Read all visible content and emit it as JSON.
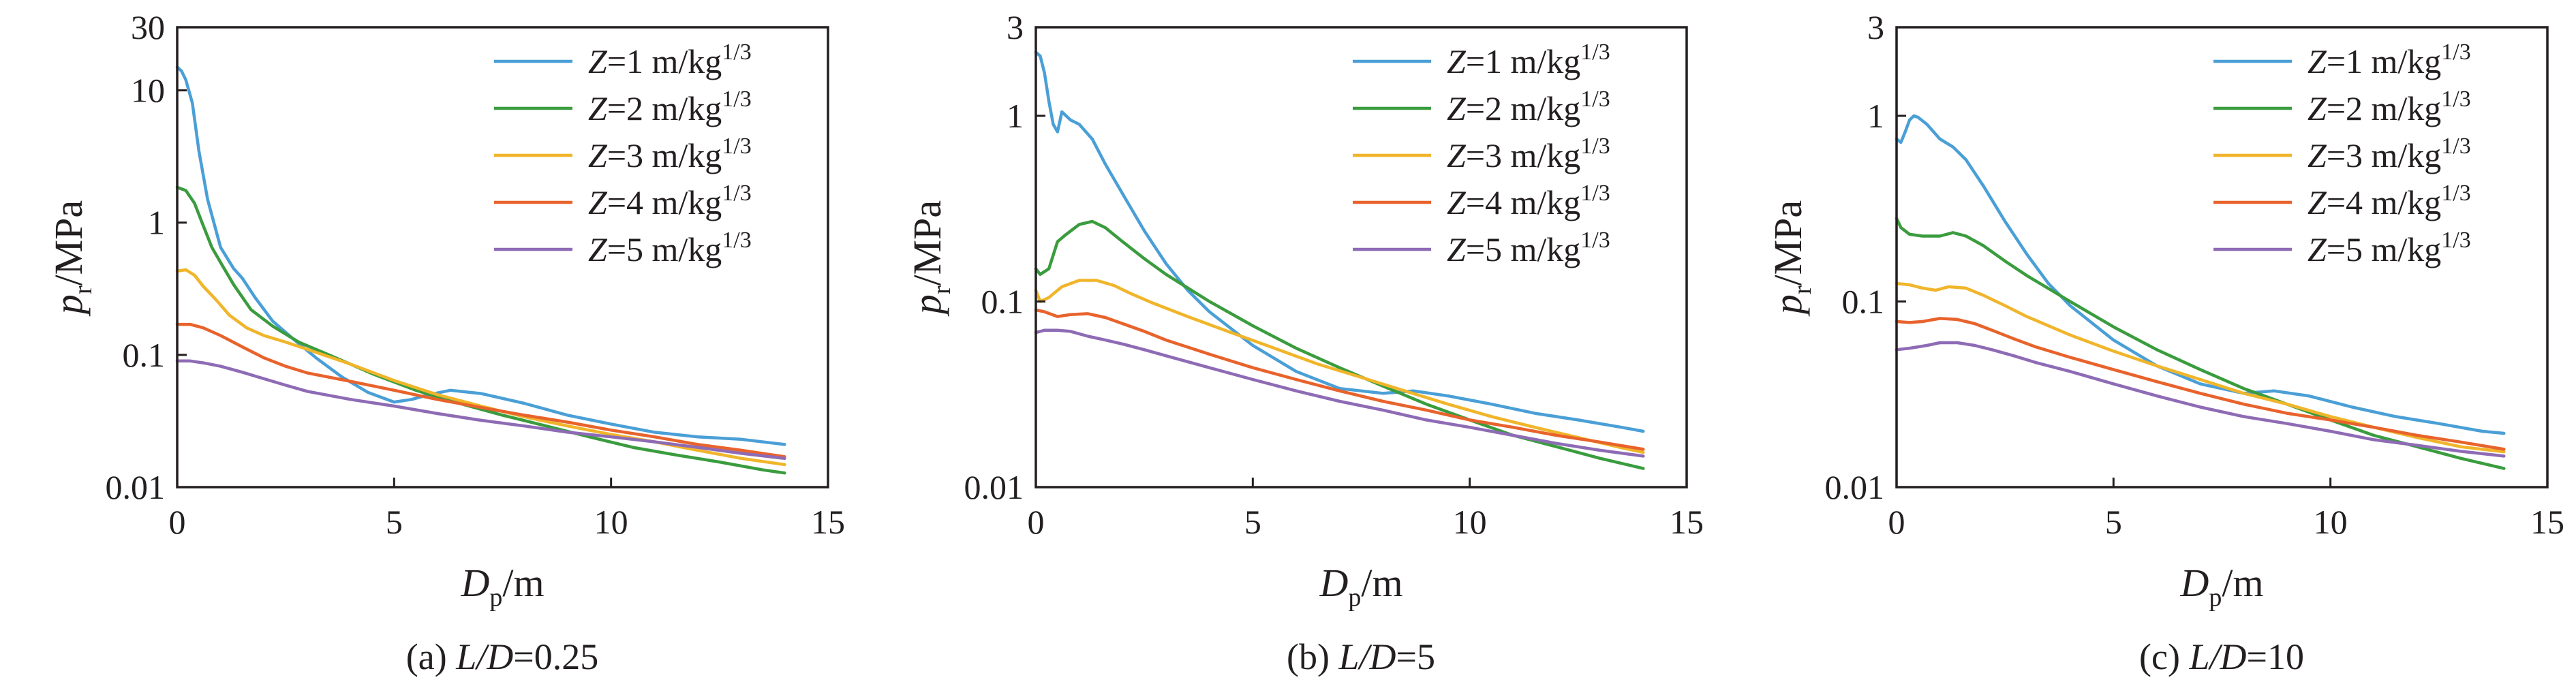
{
  "chart_data": [
    {
      "type": "line",
      "panel_label": "(a) ",
      "caption_var": "L/D",
      "caption_val": "=0.25",
      "xlabel_main": "D",
      "xlabel_sub": "p",
      "xlabel_unit": "/m",
      "ylabel_main": "p",
      "ylabel_sub": "r",
      "ylabel_unit": "/MPa",
      "xlim": [
        0,
        15
      ],
      "ylim": [
        0.01,
        30
      ],
      "y_scale": "log",
      "x_ticks": [
        "0",
        "5",
        "10",
        "15"
      ],
      "y_ticks": [
        "0.01",
        "0.1",
        "1",
        "10",
        "30"
      ],
      "legend_position": "top-right",
      "series": [
        {
          "name": "Z=1 m/kg1/3",
          "var": "Z",
          "rest": "=1 m/kg",
          "exp": "1/3",
          "color": "#4a9fd6",
          "x": [
            0,
            0.1,
            0.2,
            0.35,
            0.5,
            0.7,
            1.0,
            1.3,
            1.5,
            1.8,
            2.2,
            2.7,
            3.2,
            3.8,
            4.4,
            5.0,
            5.4,
            5.8,
            6.3,
            7.0,
            8.0,
            9.0,
            10.0,
            11.0,
            12.0,
            13.0,
            14.0
          ],
          "y": [
            15,
            14,
            12,
            8,
            3.5,
            1.5,
            0.65,
            0.45,
            0.38,
            0.27,
            0.18,
            0.13,
            0.095,
            0.068,
            0.052,
            0.044,
            0.046,
            0.05,
            0.054,
            0.051,
            0.043,
            0.035,
            0.03,
            0.026,
            0.024,
            0.023,
            0.021
          ]
        },
        {
          "name": "Z=2 m/kg1/3",
          "var": "Z",
          "rest": "=2 m/kg",
          "exp": "1/3",
          "color": "#3a9c3e",
          "x": [
            0,
            0.2,
            0.4,
            0.6,
            0.8,
            1.0,
            1.3,
            1.7,
            2.2,
            2.8,
            3.5,
            4.5,
            5.5,
            6.5,
            7.5,
            8.5,
            9.5,
            10.5,
            11.5,
            12.5,
            13.5,
            14.0
          ],
          "y": [
            1.85,
            1.75,
            1.4,
            0.95,
            0.65,
            0.5,
            0.34,
            0.22,
            0.165,
            0.125,
            0.1,
            0.072,
            0.054,
            0.043,
            0.035,
            0.029,
            0.024,
            0.02,
            0.0175,
            0.0155,
            0.0135,
            0.0128
          ]
        },
        {
          "name": "Z=3 m/kg1/3",
          "var": "Z",
          "rest": "=3 m/kg",
          "exp": "1/3",
          "color": "#f0b52a",
          "x": [
            0,
            0.2,
            0.4,
            0.6,
            0.9,
            1.2,
            1.6,
            2.0,
            2.5,
            3.0,
            4.0,
            5.0,
            6.0,
            7.0,
            8.0,
            9.0,
            10.0,
            11.0,
            12.0,
            13.0,
            14.0
          ],
          "y": [
            0.43,
            0.44,
            0.4,
            0.33,
            0.26,
            0.2,
            0.16,
            0.14,
            0.125,
            0.11,
            0.085,
            0.064,
            0.05,
            0.041,
            0.034,
            0.029,
            0.025,
            0.022,
            0.019,
            0.0165,
            0.0148
          ]
        },
        {
          "name": "Z=4 m/kg1/3",
          "var": "Z",
          "rest": "=4 m/kg",
          "exp": "1/3",
          "color": "#e8632c",
          "x": [
            0,
            0.3,
            0.6,
            1.0,
            1.5,
            2.0,
            2.5,
            3.0,
            4.0,
            5.0,
            6.0,
            7.0,
            8.0,
            9.0,
            10.0,
            11.0,
            12.0,
            13.0,
            14.0
          ],
          "y": [
            0.17,
            0.17,
            0.16,
            0.14,
            0.115,
            0.095,
            0.082,
            0.073,
            0.063,
            0.054,
            0.046,
            0.04,
            0.035,
            0.031,
            0.027,
            0.024,
            0.021,
            0.019,
            0.017
          ]
        },
        {
          "name": "Z=5 m/kg1/3",
          "var": "Z",
          "rest": "=5 m/kg",
          "exp": "1/3",
          "color": "#8e6bb5",
          "x": [
            0,
            0.3,
            0.6,
            1.0,
            1.5,
            2.0,
            2.5,
            3.0,
            4.0,
            5.0,
            6.0,
            7.0,
            8.0,
            9.0,
            10.0,
            11.0,
            12.0,
            13.0,
            14.0
          ],
          "y": [
            0.09,
            0.09,
            0.087,
            0.082,
            0.074,
            0.066,
            0.059,
            0.053,
            0.046,
            0.041,
            0.036,
            0.032,
            0.029,
            0.026,
            0.024,
            0.022,
            0.02,
            0.018,
            0.0165
          ]
        }
      ]
    },
    {
      "type": "line",
      "panel_label": "(b) ",
      "caption_var": "L/D",
      "caption_val": "=5",
      "xlabel_main": "D",
      "xlabel_sub": "p",
      "xlabel_unit": "/m",
      "ylabel_main": "p",
      "ylabel_sub": "r",
      "ylabel_unit": "/MPa",
      "xlim": [
        0,
        15
      ],
      "ylim": [
        0.01,
        3
      ],
      "y_scale": "log",
      "x_ticks": [
        "0",
        "5",
        "10",
        "15"
      ],
      "y_ticks": [
        "0.01",
        "0.1",
        "1",
        "3"
      ],
      "legend_position": "top-right",
      "series": [
        {
          "name": "Z=1 m/kg1/3",
          "var": "Z",
          "rest": "=1 m/kg",
          "exp": "1/3",
          "color": "#4a9fd6",
          "x": [
            0,
            0.1,
            0.2,
            0.3,
            0.4,
            0.5,
            0.6,
            0.8,
            1.0,
            1.3,
            1.6,
            2.0,
            2.5,
            3.0,
            3.5,
            4.0,
            5.0,
            6.0,
            7.0,
            8.0,
            8.7,
            9.5,
            10.5,
            11.5,
            12.5,
            13.5,
            14.0
          ],
          "y": [
            2.2,
            2.1,
            1.7,
            1.2,
            0.9,
            0.82,
            1.05,
            0.95,
            0.9,
            0.75,
            0.55,
            0.38,
            0.24,
            0.16,
            0.115,
            0.088,
            0.058,
            0.042,
            0.034,
            0.032,
            0.033,
            0.031,
            0.028,
            0.025,
            0.023,
            0.021,
            0.02
          ]
        },
        {
          "name": "Z=2 m/kg1/3",
          "var": "Z",
          "rest": "=2 m/kg",
          "exp": "1/3",
          "color": "#3a9c3e",
          "x": [
            0,
            0.1,
            0.3,
            0.5,
            0.7,
            1.0,
            1.3,
            1.6,
            2.0,
            2.5,
            3.0,
            4.0,
            5.0,
            6.0,
            7.0,
            8.0,
            9.0,
            10.0,
            11.0,
            12.0,
            13.0,
            14.0
          ],
          "y": [
            0.15,
            0.14,
            0.15,
            0.21,
            0.23,
            0.26,
            0.27,
            0.25,
            0.21,
            0.17,
            0.14,
            0.1,
            0.074,
            0.056,
            0.044,
            0.035,
            0.028,
            0.023,
            0.019,
            0.0165,
            0.0143,
            0.0126
          ]
        },
        {
          "name": "Z=3 m/kg1/3",
          "var": "Z",
          "rest": "=3 m/kg",
          "exp": "1/3",
          "color": "#f0b52a",
          "x": [
            0,
            0.1,
            0.3,
            0.6,
            1.0,
            1.4,
            1.8,
            2.2,
            2.7,
            3.5,
            4.5,
            5.5,
            6.5,
            7.5,
            8.5,
            9.5,
            10.5,
            11.5,
            12.5,
            13.5,
            14.0
          ],
          "y": [
            0.115,
            0.1,
            0.105,
            0.12,
            0.13,
            0.13,
            0.122,
            0.11,
            0.098,
            0.083,
            0.068,
            0.056,
            0.046,
            0.039,
            0.033,
            0.028,
            0.024,
            0.021,
            0.0185,
            0.0163,
            0.0154
          ]
        },
        {
          "name": "Z=4 m/kg1/3",
          "var": "Z",
          "rest": "=4 m/kg",
          "exp": "1/3",
          "color": "#e8632c",
          "x": [
            0,
            0.2,
            0.5,
            0.8,
            1.2,
            1.6,
            2.0,
            2.5,
            3.0,
            4.0,
            5.0,
            6.0,
            7.0,
            8.0,
            9.0,
            10.0,
            11.0,
            12.0,
            13.0,
            14.0
          ],
          "y": [
            0.09,
            0.088,
            0.083,
            0.085,
            0.086,
            0.082,
            0.076,
            0.069,
            0.062,
            0.052,
            0.044,
            0.038,
            0.033,
            0.029,
            0.026,
            0.023,
            0.021,
            0.019,
            0.0175,
            0.016
          ]
        },
        {
          "name": "Z=5 m/kg1/3",
          "var": "Z",
          "rest": "=5 m/kg",
          "exp": "1/3",
          "color": "#8e6bb5",
          "x": [
            0,
            0.2,
            0.5,
            0.8,
            1.2,
            1.6,
            2.0,
            2.5,
            3.0,
            4.0,
            5.0,
            6.0,
            7.0,
            8.0,
            9.0,
            10.0,
            11.0,
            12.0,
            13.0,
            14.0
          ],
          "y": [
            0.068,
            0.07,
            0.07,
            0.069,
            0.065,
            0.062,
            0.059,
            0.055,
            0.051,
            0.044,
            0.038,
            0.033,
            0.029,
            0.026,
            0.023,
            0.021,
            0.019,
            0.0172,
            0.0158,
            0.0147
          ]
        }
      ]
    },
    {
      "type": "line",
      "panel_label": "(c) ",
      "caption_var": "L/D",
      "caption_val": "=10",
      "xlabel_main": "D",
      "xlabel_sub": "p",
      "xlabel_unit": "/m",
      "ylabel_main": "p",
      "ylabel_sub": "r",
      "ylabel_unit": "/MPa",
      "xlim": [
        0,
        15
      ],
      "ylim": [
        0.01,
        3
      ],
      "y_scale": "log",
      "x_ticks": [
        "0",
        "5",
        "10",
        "15"
      ],
      "y_ticks": [
        "0.01",
        "0.1",
        "1",
        "3"
      ],
      "legend_position": "top-right",
      "series": [
        {
          "name": "Z=1 m/kg1/3",
          "var": "Z",
          "rest": "=1 m/kg",
          "exp": "1/3",
          "color": "#4a9fd6",
          "x": [
            0,
            0.1,
            0.2,
            0.3,
            0.4,
            0.5,
            0.7,
            1.0,
            1.3,
            1.6,
            2.0,
            2.5,
            3.0,
            3.5,
            4.0,
            5.0,
            6.0,
            7.0,
            8.0,
            8.7,
            9.5,
            10.5,
            11.5,
            12.5,
            13.5,
            14.0
          ],
          "y": [
            0.75,
            0.72,
            0.82,
            0.95,
            1.0,
            0.98,
            0.9,
            0.75,
            0.68,
            0.58,
            0.42,
            0.27,
            0.18,
            0.125,
            0.095,
            0.062,
            0.045,
            0.036,
            0.032,
            0.033,
            0.031,
            0.027,
            0.024,
            0.022,
            0.02,
            0.0195
          ]
        },
        {
          "name": "Z=2 m/kg1/3",
          "var": "Z",
          "rest": "=2 m/kg",
          "exp": "1/3",
          "color": "#3a9c3e",
          "x": [
            0,
            0.1,
            0.3,
            0.6,
            1.0,
            1.3,
            1.6,
            2.0,
            2.5,
            3.0,
            4.0,
            5.0,
            6.0,
            7.0,
            8.0,
            9.0,
            10.0,
            11.0,
            12.0,
            13.0,
            14.0
          ],
          "y": [
            0.28,
            0.25,
            0.23,
            0.225,
            0.225,
            0.235,
            0.225,
            0.2,
            0.165,
            0.138,
            0.1,
            0.073,
            0.055,
            0.043,
            0.034,
            0.028,
            0.023,
            0.019,
            0.0165,
            0.0143,
            0.0126
          ]
        },
        {
          "name": "Z=3 m/kg1/3",
          "var": "Z",
          "rest": "=3 m/kg",
          "exp": "1/3",
          "color": "#f0b52a",
          "x": [
            0,
            0.3,
            0.6,
            0.9,
            1.2,
            1.6,
            2.0,
            2.5,
            3.0,
            4.0,
            5.0,
            6.0,
            7.0,
            8.0,
            9.0,
            10.0,
            11.0,
            12.0,
            13.0,
            14.0
          ],
          "y": [
            0.125,
            0.123,
            0.118,
            0.115,
            0.12,
            0.118,
            0.108,
            0.095,
            0.083,
            0.066,
            0.054,
            0.045,
            0.038,
            0.032,
            0.028,
            0.024,
            0.021,
            0.0185,
            0.0165,
            0.0155
          ]
        },
        {
          "name": "Z=4 m/kg1/3",
          "var": "Z",
          "rest": "=4 m/kg",
          "exp": "1/3",
          "color": "#e8632c",
          "x": [
            0,
            0.3,
            0.6,
            1.0,
            1.4,
            1.8,
            2.2,
            2.7,
            3.2,
            4.0,
            5.0,
            6.0,
            7.0,
            8.0,
            9.0,
            10.0,
            11.0,
            12.0,
            13.0,
            14.0
          ],
          "y": [
            0.078,
            0.077,
            0.078,
            0.081,
            0.08,
            0.076,
            0.07,
            0.063,
            0.057,
            0.05,
            0.043,
            0.037,
            0.032,
            0.028,
            0.025,
            0.023,
            0.021,
            0.019,
            0.0175,
            0.016
          ]
        },
        {
          "name": "Z=5 m/kg1/3",
          "var": "Z",
          "rest": "=5 m/kg",
          "exp": "1/3",
          "color": "#8e6bb5",
          "x": [
            0,
            0.3,
            0.7,
            1.0,
            1.4,
            1.8,
            2.2,
            2.7,
            3.2,
            4.0,
            5.0,
            6.0,
            7.0,
            8.0,
            9.0,
            10.0,
            11.0,
            12.0,
            13.0,
            14.0
          ],
          "y": [
            0.055,
            0.056,
            0.058,
            0.06,
            0.06,
            0.058,
            0.055,
            0.051,
            0.047,
            0.042,
            0.036,
            0.031,
            0.027,
            0.024,
            0.022,
            0.02,
            0.018,
            0.0168,
            0.0156,
            0.0147
          ]
        }
      ]
    }
  ]
}
